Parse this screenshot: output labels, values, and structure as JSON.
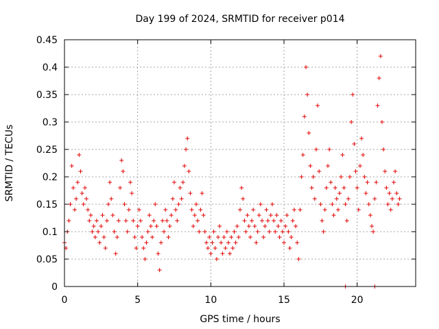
{
  "chart_data": {
    "type": "scatter",
    "title": "Day 199 of 2024, SRMTID for receiver p014",
    "xlabel": "GPS time / hours",
    "ylabel": "SRMTID / TECUs",
    "xlim": [
      0,
      24
    ],
    "ylim": [
      0,
      0.45
    ],
    "xticks": [
      0,
      5,
      10,
      15,
      20
    ],
    "xtick_labels": [
      "0",
      "5",
      "10",
      "15",
      "20"
    ],
    "yticks": [
      0,
      0.05,
      0.1,
      0.15,
      0.2,
      0.25,
      0.3,
      0.35,
      0.4,
      0.45
    ],
    "ytick_labels": [
      "0",
      "0.05",
      "0.1",
      "0.15",
      "0.2",
      "0.25",
      "0.3",
      "0.35",
      "0.4",
      "0.45"
    ],
    "grid": true,
    "marker": "+",
    "color": "#e00000",
    "series": [
      {
        "name": "SRMTID",
        "points": [
          [
            0.0,
            0.08
          ],
          [
            0.1,
            0.07
          ],
          [
            0.2,
            0.1
          ],
          [
            0.3,
            0.12
          ],
          [
            0.4,
            0.15
          ],
          [
            0.5,
            0.22
          ],
          [
            0.6,
            0.18
          ],
          [
            0.7,
            0.14
          ],
          [
            0.8,
            0.16
          ],
          [
            0.9,
            0.19
          ],
          [
            1.0,
            0.24
          ],
          [
            1.1,
            0.21
          ],
          [
            1.2,
            0.17
          ],
          [
            1.3,
            0.15
          ],
          [
            1.4,
            0.18
          ],
          [
            1.5,
            0.16
          ],
          [
            1.6,
            0.14
          ],
          [
            1.7,
            0.12
          ],
          [
            1.8,
            0.13
          ],
          [
            1.9,
            0.1
          ],
          [
            2.0,
            0.11
          ],
          [
            2.1,
            0.09
          ],
          [
            2.2,
            0.12
          ],
          [
            2.3,
            0.1
          ],
          [
            2.4,
            0.08
          ],
          [
            2.5,
            0.11
          ],
          [
            2.6,
            0.13
          ],
          [
            2.7,
            0.09
          ],
          [
            2.8,
            0.07
          ],
          [
            2.9,
            0.12
          ],
          [
            3.0,
            0.15
          ],
          [
            3.1,
            0.19
          ],
          [
            3.2,
            0.16
          ],
          [
            3.3,
            0.13
          ],
          [
            3.4,
            0.1
          ],
          [
            3.5,
            0.06
          ],
          [
            3.6,
            0.09
          ],
          [
            3.7,
            0.12
          ],
          [
            3.8,
            0.18
          ],
          [
            3.9,
            0.23
          ],
          [
            4.0,
            0.21
          ],
          [
            4.1,
            0.15
          ],
          [
            4.2,
            0.12
          ],
          [
            4.3,
            0.1
          ],
          [
            4.4,
            0.14
          ],
          [
            4.5,
            0.19
          ],
          [
            4.6,
            0.17
          ],
          [
            4.7,
            0.12
          ],
          [
            4.8,
            0.09
          ],
          [
            4.9,
            0.07
          ],
          [
            5.0,
            0.11
          ],
          [
            5.1,
            0.14
          ],
          [
            5.2,
            0.12
          ],
          [
            5.3,
            0.09
          ],
          [
            5.4,
            0.07
          ],
          [
            5.5,
            0.05
          ],
          [
            5.6,
            0.08
          ],
          [
            5.7,
            0.1
          ],
          [
            5.8,
            0.13
          ],
          [
            5.9,
            0.11
          ],
          [
            6.0,
            0.09
          ],
          [
            6.1,
            0.12
          ],
          [
            6.2,
            0.15
          ],
          [
            6.3,
            0.11
          ],
          [
            6.4,
            0.06
          ],
          [
            6.5,
            0.03
          ],
          [
            6.6,
            0.08
          ],
          [
            6.7,
            0.12
          ],
          [
            6.8,
            0.1
          ],
          [
            6.9,
            0.14
          ],
          [
            7.0,
            0.12
          ],
          [
            7.1,
            0.09
          ],
          [
            7.2,
            0.11
          ],
          [
            7.3,
            0.13
          ],
          [
            7.4,
            0.16
          ],
          [
            7.5,
            0.19
          ],
          [
            7.6,
            0.14
          ],
          [
            7.7,
            0.12
          ],
          [
            7.8,
            0.15
          ],
          [
            7.9,
            0.18
          ],
          [
            8.0,
            0.16
          ],
          [
            8.1,
            0.19
          ],
          [
            8.2,
            0.22
          ],
          [
            8.3,
            0.25
          ],
          [
            8.4,
            0.27
          ],
          [
            8.5,
            0.21
          ],
          [
            8.6,
            0.17
          ],
          [
            8.7,
            0.14
          ],
          [
            8.8,
            0.11
          ],
          [
            8.9,
            0.13
          ],
          [
            9.0,
            0.15
          ],
          [
            9.1,
            0.12
          ],
          [
            9.2,
            0.1
          ],
          [
            9.3,
            0.14
          ],
          [
            9.4,
            0.17
          ],
          [
            9.5,
            0.13
          ],
          [
            9.6,
            0.1
          ],
          [
            9.7,
            0.08
          ],
          [
            9.8,
            0.07
          ],
          [
            9.9,
            0.09
          ],
          [
            10.0,
            0.06
          ],
          [
            10.1,
            0.08
          ],
          [
            10.2,
            0.1
          ],
          [
            10.3,
            0.07
          ],
          [
            10.4,
            0.05
          ],
          [
            10.5,
            0.09
          ],
          [
            10.6,
            0.11
          ],
          [
            10.7,
            0.08
          ],
          [
            10.8,
            0.06
          ],
          [
            10.9,
            0.09
          ],
          [
            11.0,
            0.07
          ],
          [
            11.1,
            0.1
          ],
          [
            11.2,
            0.08
          ],
          [
            11.3,
            0.06
          ],
          [
            11.4,
            0.09
          ],
          [
            11.5,
            0.07
          ],
          [
            11.6,
            0.1
          ],
          [
            11.7,
            0.08
          ],
          [
            11.8,
            0.11
          ],
          [
            11.9,
            0.09
          ],
          [
            12.0,
            0.14
          ],
          [
            12.1,
            0.18
          ],
          [
            12.2,
            0.16
          ],
          [
            12.3,
            0.12
          ],
          [
            12.4,
            0.1
          ],
          [
            12.5,
            0.13
          ],
          [
            12.6,
            0.11
          ],
          [
            12.7,
            0.09
          ],
          [
            12.8,
            0.12
          ],
          [
            12.9,
            0.14
          ],
          [
            13.0,
            0.11
          ],
          [
            13.1,
            0.08
          ],
          [
            13.2,
            0.1
          ],
          [
            13.3,
            0.13
          ],
          [
            13.4,
            0.15
          ],
          [
            13.5,
            0.12
          ],
          [
            13.6,
            0.09
          ],
          [
            13.7,
            0.11
          ],
          [
            13.8,
            0.14
          ],
          [
            13.9,
            0.12
          ],
          [
            14.0,
            0.1
          ],
          [
            14.1,
            0.13
          ],
          [
            14.2,
            0.15
          ],
          [
            14.3,
            0.12
          ],
          [
            14.4,
            0.1
          ],
          [
            14.5,
            0.13
          ],
          [
            14.6,
            0.11
          ],
          [
            14.7,
            0.09
          ],
          [
            14.8,
            0.12
          ],
          [
            14.9,
            0.1
          ],
          [
            15.0,
            0.08
          ],
          [
            15.1,
            0.11
          ],
          [
            15.2,
            0.13
          ],
          [
            15.3,
            0.1
          ],
          [
            15.4,
            0.07
          ],
          [
            15.5,
            0.09
          ],
          [
            15.6,
            0.12
          ],
          [
            15.7,
            0.14
          ],
          [
            15.8,
            0.11
          ],
          [
            15.9,
            0.08
          ],
          [
            16.0,
            0.05
          ],
          [
            16.1,
            0.14
          ],
          [
            16.2,
            0.2
          ],
          [
            16.3,
            0.24
          ],
          [
            16.4,
            0.31
          ],
          [
            16.5,
            0.4
          ],
          [
            16.6,
            0.35
          ],
          [
            16.7,
            0.28
          ],
          [
            16.8,
            0.22
          ],
          [
            16.9,
            0.18
          ],
          [
            17.0,
            0.2
          ],
          [
            17.1,
            0.16
          ],
          [
            17.2,
            0.25
          ],
          [
            17.3,
            0.33
          ],
          [
            17.4,
            0.21
          ],
          [
            17.5,
            0.15
          ],
          [
            17.6,
            0.12
          ],
          [
            17.7,
            0.1
          ],
          [
            17.8,
            0.14
          ],
          [
            17.9,
            0.18
          ],
          [
            18.0,
            0.22
          ],
          [
            18.1,
            0.25
          ],
          [
            18.2,
            0.19
          ],
          [
            18.3,
            0.15
          ],
          [
            18.4,
            0.13
          ],
          [
            18.5,
            0.18
          ],
          [
            18.6,
            0.16
          ],
          [
            18.7,
            0.14
          ],
          [
            18.8,
            0.17
          ],
          [
            18.9,
            0.2
          ],
          [
            19.0,
            0.24
          ],
          [
            19.1,
            0.18
          ],
          [
            19.2,
            0.15
          ],
          [
            19.3,
            0.12
          ],
          [
            19.4,
            0.16
          ],
          [
            19.5,
            0.2
          ],
          [
            19.6,
            0.3
          ],
          [
            19.7,
            0.35
          ],
          [
            19.8,
            0.26
          ],
          [
            19.9,
            0.21
          ],
          [
            20.0,
            0.18
          ],
          [
            20.1,
            0.14
          ],
          [
            20.2,
            0.22
          ],
          [
            20.3,
            0.27
          ],
          [
            20.4,
            0.24
          ],
          [
            20.5,
            0.2
          ],
          [
            20.6,
            0.17
          ],
          [
            20.7,
            0.19
          ],
          [
            20.8,
            0.15
          ],
          [
            20.9,
            0.13
          ],
          [
            21.0,
            0.11
          ],
          [
            21.1,
            0.1
          ],
          [
            21.2,
            0.16
          ],
          [
            21.3,
            0.19
          ],
          [
            21.4,
            0.33
          ],
          [
            21.5,
            0.38
          ],
          [
            21.6,
            0.42
          ],
          [
            21.7,
            0.3
          ],
          [
            21.8,
            0.25
          ],
          [
            21.9,
            0.21
          ],
          [
            22.0,
            0.18
          ],
          [
            22.1,
            0.15
          ],
          [
            22.2,
            0.17
          ],
          [
            22.3,
            0.14
          ],
          [
            22.4,
            0.16
          ],
          [
            22.5,
            0.19
          ],
          [
            22.6,
            0.21
          ],
          [
            22.7,
            0.17
          ],
          [
            22.8,
            0.15
          ],
          [
            22.9,
            0.16
          ],
          [
            19.2,
            0.0
          ],
          [
            21.2,
            0.0
          ]
        ]
      }
    ]
  }
}
